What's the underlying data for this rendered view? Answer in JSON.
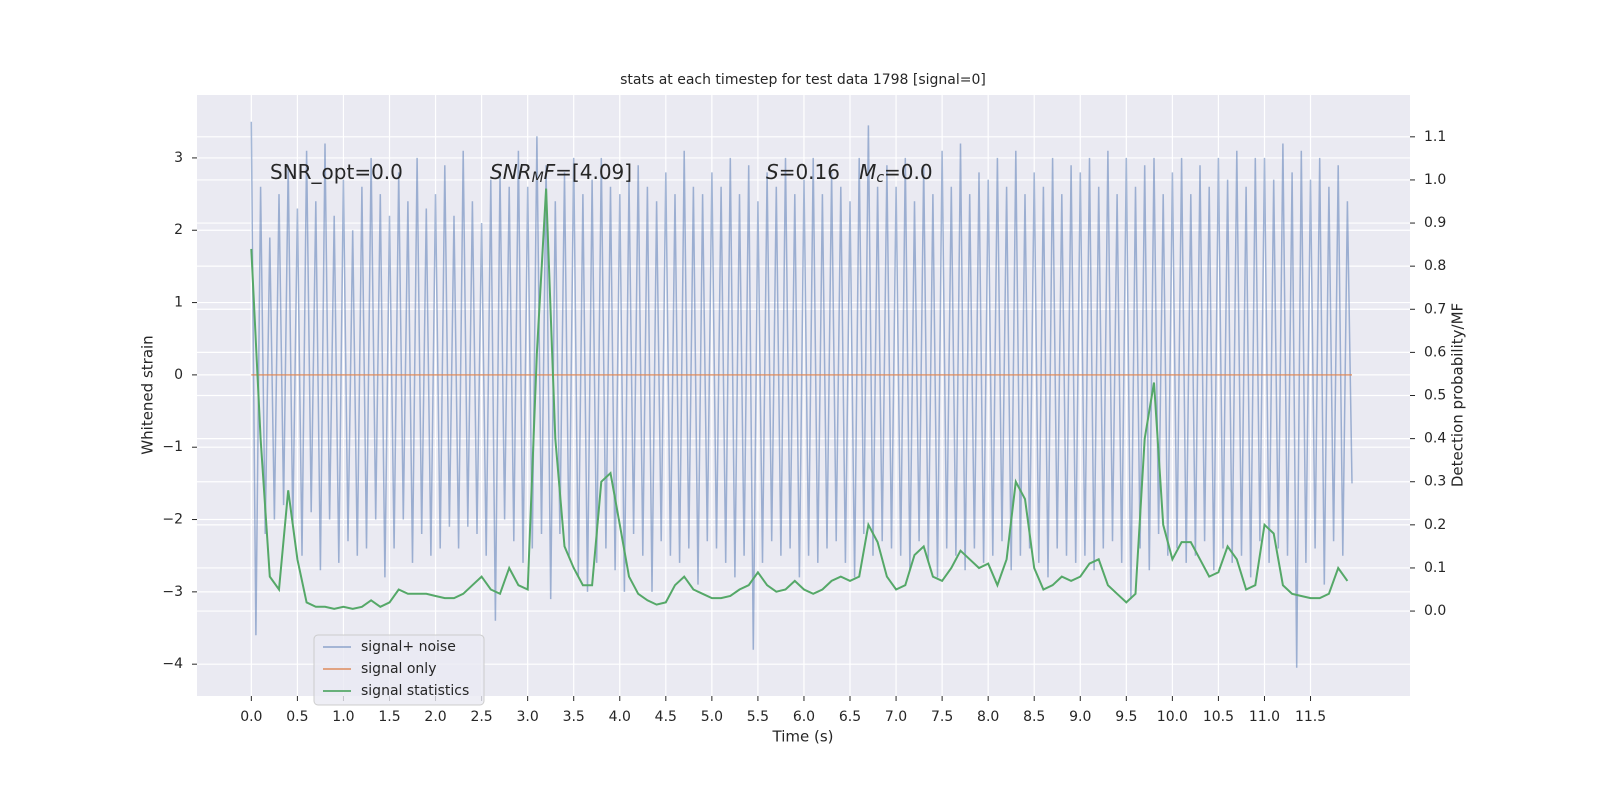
{
  "chart_data": {
    "type": "line",
    "title": "stats at each timestep for test data 1798 [signal=0]",
    "xlabel": "Time (s)",
    "ylabel": "Whitened strain",
    "y2label": "Detection probability/MF",
    "xlim": [
      -0.59,
      12.58
    ],
    "ylim": [
      -4.44,
      3.87
    ],
    "y2lim": [
      -0.197,
      1.197
    ],
    "xticks": [
      {
        "value": 0,
        "label": "0.0"
      },
      {
        "value": 0.5,
        "label": "0.5"
      },
      {
        "value": 1,
        "label": "1.0"
      },
      {
        "value": 1.5,
        "label": "1.5"
      },
      {
        "value": 2,
        "label": "2.0"
      },
      {
        "value": 2.5,
        "label": "2.5"
      },
      {
        "value": 3,
        "label": "3.0"
      },
      {
        "value": 3.5,
        "label": "3.5"
      },
      {
        "value": 4,
        "label": "4.0"
      },
      {
        "value": 4.5,
        "label": "4.5"
      },
      {
        "value": 5,
        "label": "5.0"
      },
      {
        "value": 5.5,
        "label": "5.5"
      },
      {
        "value": 6,
        "label": "6.0"
      },
      {
        "value": 6.5,
        "label": "6.5"
      },
      {
        "value": 7,
        "label": "7.0"
      },
      {
        "value": 7.5,
        "label": "7.5"
      },
      {
        "value": 8,
        "label": "8.0"
      },
      {
        "value": 8.5,
        "label": "8.5"
      },
      {
        "value": 9,
        "label": "9.0"
      },
      {
        "value": 9.5,
        "label": "9.5"
      },
      {
        "value": 10,
        "label": "10.0"
      },
      {
        "value": 10.5,
        "label": "10.5"
      },
      {
        "value": 11,
        "label": "11.0"
      },
      {
        "value": 11.5,
        "label": "11.5"
      }
    ],
    "yticks": [
      {
        "value": -4,
        "label": "−4"
      },
      {
        "value": -3,
        "label": "−3"
      },
      {
        "value": -2,
        "label": "−2"
      },
      {
        "value": -1,
        "label": "−1"
      },
      0,
      1,
      2,
      3
    ],
    "y2ticks": [
      {
        "value": 0,
        "label": "0.0"
      },
      0.1,
      0.2,
      0.3,
      0.4,
      0.5,
      0.6,
      0.7,
      0.8,
      0.9,
      {
        "value": 1,
        "label": "1.0"
      },
      1.1
    ],
    "grid": true,
    "legend": "lower left",
    "annotations": [
      {
        "parts": [
          {
            "text": "SNR_opt=0.0"
          }
        ]
      },
      {
        "parts": [
          {
            "text": "SNR",
            "italic": true
          },
          {
            "text": "M",
            "italic": true,
            "sub": true
          },
          {
            "text": "F",
            "italic": true
          },
          {
            "text": "=[4.09]"
          }
        ]
      },
      {
        "parts": [
          {
            "text": "S",
            "italic": true
          },
          {
            "text": "=0.16   "
          },
          {
            "text": "M",
            "italic": true
          },
          {
            "text": "c",
            "italic": true,
            "sub": true
          },
          {
            "text": "=0.0"
          }
        ]
      }
    ],
    "series": [
      {
        "name": "signal+ noise",
        "color": "#4c72b0",
        "opacity": 0.5,
        "x": [
          0,
          0.05,
          0.1,
          0.15,
          0.2,
          0.25,
          0.3,
          0.35,
          0.4,
          0.45,
          0.5,
          0.55,
          0.6,
          0.65,
          0.7,
          0.75,
          0.8,
          0.85,
          0.9,
          0.95,
          1,
          1.05,
          1.1,
          1.15,
          1.2,
          1.25,
          1.3,
          1.35,
          1.4,
          1.45,
          1.5,
          1.55,
          1.6,
          1.65,
          1.7,
          1.75,
          1.8,
          1.85,
          1.9,
          1.95,
          2,
          2.05,
          2.1,
          2.15,
          2.2,
          2.25,
          2.3,
          2.35,
          2.4,
          2.45,
          2.5,
          2.55,
          2.6,
          2.65,
          2.7,
          2.75,
          2.8,
          2.85,
          2.9,
          2.95,
          3,
          3.05,
          3.1,
          3.15,
          3.2,
          3.25,
          3.3,
          3.35,
          3.4,
          3.45,
          3.5,
          3.55,
          3.6,
          3.65,
          3.7,
          3.75,
          3.8,
          3.85,
          3.9,
          3.95,
          4,
          4.05,
          4.1,
          4.15,
          4.2,
          4.25,
          4.3,
          4.35,
          4.4,
          4.45,
          4.5,
          4.55,
          4.6,
          4.65,
          4.7,
          4.75,
          4.8,
          4.85,
          4.9,
          4.95,
          5,
          5.05,
          5.1,
          5.15,
          5.2,
          5.25,
          5.3,
          5.35,
          5.4,
          5.45,
          5.5,
          5.55,
          5.6,
          5.65,
          5.7,
          5.75,
          5.8,
          5.85,
          5.9,
          5.95,
          6,
          6.05,
          6.1,
          6.15,
          6.2,
          6.25,
          6.3,
          6.35,
          6.4,
          6.45,
          6.5,
          6.55,
          6.6,
          6.65,
          6.7,
          6.75,
          6.8,
          6.85,
          6.9,
          6.95,
          7,
          7.05,
          7.1,
          7.15,
          7.2,
          7.25,
          7.3,
          7.35,
          7.4,
          7.45,
          7.5,
          7.55,
          7.6,
          7.65,
          7.7,
          7.75,
          7.8,
          7.85,
          7.9,
          7.95,
          8,
          8.05,
          8.1,
          8.15,
          8.2,
          8.25,
          8.3,
          8.35,
          8.4,
          8.45,
          8.5,
          8.55,
          8.6,
          8.65,
          8.7,
          8.75,
          8.8,
          8.85,
          8.9,
          8.95,
          9,
          9.05,
          9.1,
          9.15,
          9.2,
          9.25,
          9.3,
          9.35,
          9.4,
          9.45,
          9.5,
          9.55,
          9.6,
          9.65,
          9.7,
          9.75,
          9.8,
          9.85,
          9.9,
          9.95,
          10,
          10.05,
          10.1,
          10.15,
          10.2,
          10.25,
          10.3,
          10.35,
          10.4,
          10.45,
          10.5,
          10.55,
          10.6,
          10.65,
          10.7,
          10.75,
          10.8,
          10.85,
          10.9,
          10.95,
          11,
          11.05,
          11.1,
          11.15,
          11.2,
          11.25,
          11.3,
          11.35,
          11.4,
          11.45,
          11.5,
          11.55,
          11.6,
          11.65,
          11.7,
          11.75,
          11.8,
          11.85,
          11.9,
          11.95
        ],
        "values": [
          3.5,
          -3.6,
          2.6,
          -2.2,
          1.9,
          -2.0,
          2.5,
          -1.8,
          2.9,
          -2.1,
          2.3,
          -2.5,
          3.1,
          -1.9,
          2.4,
          -2.7,
          3.2,
          -2.0,
          2.2,
          -2.6,
          2.7,
          -2.3,
          2.0,
          -2.5,
          2.6,
          -2.4,
          3.0,
          -2.0,
          2.5,
          -2.8,
          2.2,
          -2.4,
          2.8,
          -2.0,
          2.4,
          -2.6,
          3.0,
          -2.2,
          2.3,
          -2.5,
          2.5,
          -2.4,
          2.9,
          -2.1,
          2.2,
          -2.4,
          3.1,
          -2.1,
          2.4,
          -2.2,
          2.1,
          -2.5,
          2.7,
          -3.4,
          2.8,
          -2.0,
          2.6,
          -2.3,
          3.1,
          -2.6,
          2.6,
          -2.4,
          3.3,
          -2.2,
          2.9,
          -3.1,
          2.4,
          -2.2,
          2.8,
          -2.5,
          3.0,
          -2.8,
          2.5,
          -3.0,
          2.7,
          -2.6,
          3.0,
          -2.4,
          2.6,
          -2.7,
          2.5,
          -3.0,
          2.7,
          -2.2,
          2.9,
          -2.5,
          2.6,
          -3.0,
          2.4,
          -2.3,
          2.8,
          -2.5,
          2.5,
          -2.6,
          3.1,
          -2.4,
          2.6,
          -2.9,
          2.5,
          -2.3,
          2.8,
          -2.4,
          2.6,
          -2.6,
          3.0,
          -2.8,
          2.5,
          -2.5,
          2.9,
          -3.8,
          2.4,
          -2.6,
          2.8,
          -2.3,
          2.6,
          -2.5,
          3.0,
          -2.4,
          2.5,
          -2.8,
          2.7,
          -2.5,
          3.0,
          -2.6,
          2.5,
          -2.4,
          2.8,
          -2.3,
          2.6,
          -2.6,
          2.4,
          -2.8,
          3.0,
          -2.2,
          3.45,
          -2.5,
          2.6,
          -2.3,
          2.9,
          -2.4,
          2.6,
          -2.5,
          3.0,
          -2.7,
          2.4,
          -2.3,
          2.9,
          -2.6,
          2.5,
          -2.8,
          3.1,
          -2.4,
          2.6,
          -2.5,
          3.2,
          -2.7,
          2.5,
          -2.4,
          2.8,
          -2.6,
          2.7,
          -2.5,
          3.0,
          -2.3,
          2.6,
          -2.7,
          3.1,
          -2.5,
          2.5,
          -2.4,
          2.8,
          -2.6,
          2.6,
          -2.8,
          3.0,
          -2.4,
          2.5,
          -2.5,
          2.9,
          -2.6,
          2.8,
          -2.5,
          3.0,
          -2.7,
          2.6,
          -2.4,
          3.1,
          -2.3,
          2.5,
          -2.6,
          3.0,
          -3.1,
          2.6,
          -2.4,
          2.9,
          -2.7,
          3.0,
          -2.2,
          2.5,
          -2.5,
          2.8,
          -2.4,
          3.0,
          -2.6,
          2.5,
          -2.5,
          2.9,
          -2.3,
          2.6,
          -2.7,
          3.0,
          -2.4,
          2.7,
          -2.6,
          3.1,
          -2.5,
          2.6,
          -2.8,
          3.0,
          -2.3,
          3.0,
          -2.6,
          2.7,
          -2.4,
          3.2,
          -2.5,
          2.8,
          -4.05,
          3.1,
          -2.6,
          2.7,
          -2.4,
          3.0,
          -2.9,
          2.6,
          -2.3,
          2.9,
          -2.5,
          2.4,
          -1.5
        ]
      },
      {
        "name": "signal only",
        "color": "#dd8452",
        "opacity": 0.8,
        "x": [
          0,
          11.95
        ],
        "values": [
          0,
          0
        ]
      },
      {
        "name": "signal statistics",
        "color": "#55a868",
        "opacity": 1,
        "axis": "y2",
        "x": [
          0,
          0.1,
          0.2,
          0.3,
          0.4,
          0.5,
          0.6,
          0.7,
          0.8,
          0.9,
          1,
          1.1,
          1.2,
          1.3,
          1.4,
          1.5,
          1.6,
          1.7,
          1.8,
          1.9,
          2,
          2.1,
          2.2,
          2.3,
          2.4,
          2.5,
          2.6,
          2.7,
          2.8,
          2.9,
          3,
          3.1,
          3.2,
          3.3,
          3.4,
          3.5,
          3.6,
          3.7,
          3.8,
          3.9,
          4,
          4.1,
          4.2,
          4.3,
          4.4,
          4.5,
          4.6,
          4.7,
          4.8,
          4.9,
          5,
          5.1,
          5.2,
          5.3,
          5.4,
          5.5,
          5.6,
          5.7,
          5.8,
          5.9,
          6,
          6.1,
          6.2,
          6.3,
          6.4,
          6.5,
          6.6,
          6.7,
          6.8,
          6.9,
          7,
          7.1,
          7.2,
          7.3,
          7.4,
          7.5,
          7.6,
          7.7,
          7.8,
          7.9,
          8,
          8.1,
          8.2,
          8.3,
          8.4,
          8.5,
          8.6,
          8.7,
          8.8,
          8.9,
          9,
          9.1,
          9.2,
          9.3,
          9.4,
          9.5,
          9.6,
          9.7,
          9.8,
          9.9,
          10,
          10.1,
          10.2,
          10.3,
          10.4,
          10.5,
          10.6,
          10.7,
          10.8,
          10.9,
          11,
          11.1,
          11.2,
          11.3,
          11.4,
          11.5,
          11.6,
          11.7,
          11.8,
          11.9
        ],
        "values": [
          0.84,
          0.4,
          0.08,
          0.05,
          0.28,
          0.12,
          0.02,
          0.01,
          0.01,
          0.005,
          0.01,
          0.005,
          0.01,
          0.025,
          0.01,
          0.02,
          0.05,
          0.04,
          0.04,
          0.04,
          0.035,
          0.03,
          0.03,
          0.04,
          0.06,
          0.08,
          0.05,
          0.04,
          0.1,
          0.06,
          0.05,
          0.6,
          0.98,
          0.4,
          0.15,
          0.1,
          0.06,
          0.06,
          0.3,
          0.32,
          0.2,
          0.08,
          0.04,
          0.025,
          0.015,
          0.02,
          0.06,
          0.08,
          0.05,
          0.04,
          0.03,
          0.03,
          0.035,
          0.05,
          0.06,
          0.09,
          0.06,
          0.045,
          0.05,
          0.07,
          0.05,
          0.04,
          0.05,
          0.07,
          0.08,
          0.07,
          0.08,
          0.2,
          0.16,
          0.08,
          0.05,
          0.06,
          0.13,
          0.15,
          0.08,
          0.07,
          0.1,
          0.14,
          0.12,
          0.1,
          0.11,
          0.06,
          0.12,
          0.3,
          0.26,
          0.1,
          0.05,
          0.06,
          0.08,
          0.07,
          0.08,
          0.11,
          0.12,
          0.06,
          0.04,
          0.02,
          0.04,
          0.4,
          0.53,
          0.2,
          0.12,
          0.16,
          0.16,
          0.12,
          0.08,
          0.09,
          0.15,
          0.12,
          0.05,
          0.06,
          0.2,
          0.18,
          0.06,
          0.04,
          0.035,
          0.03,
          0.03,
          0.04,
          0.1,
          0.07
        ]
      }
    ]
  }
}
